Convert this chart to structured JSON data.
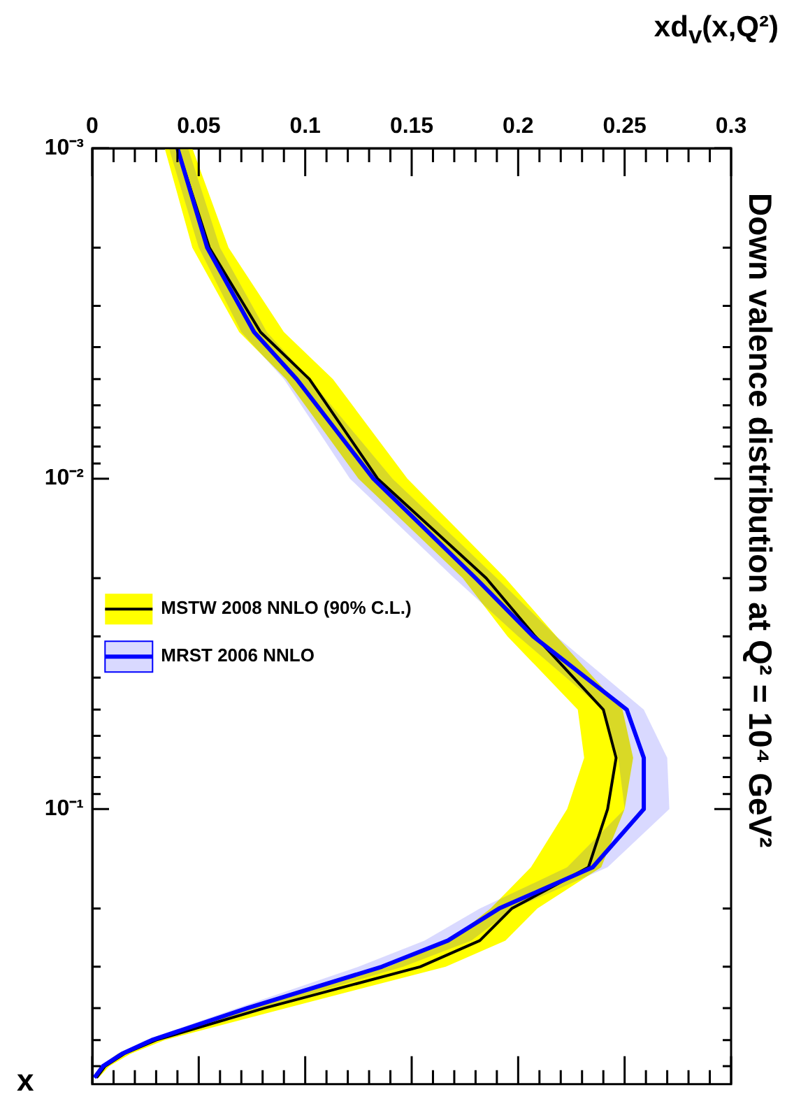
{
  "chart_data": {
    "type": "line",
    "orientation": "horizontal",
    "title": "Down valence distribution at Q² = 10⁴ GeV²",
    "xlabel": "xd$_{v}$(x,Q²)",
    "ylabel": "x",
    "log": "y",
    "ylim": [
      0.68,
      0.001
    ],
    "xlim": [
      0,
      0.3
    ],
    "yticks": [
      {
        "value": 0.001,
        "label": "10⁻³"
      },
      {
        "value": 0.002,
        "label": null
      },
      {
        "value": 0.003,
        "label": null
      },
      {
        "value": 0.004,
        "label": null
      },
      {
        "value": 0.005,
        "label": null
      },
      {
        "value": 0.006,
        "label": null
      },
      {
        "value": 0.007,
        "label": null
      },
      {
        "value": 0.008,
        "label": null
      },
      {
        "value": 0.009,
        "label": null
      },
      {
        "value": 0.01,
        "label": "10⁻²"
      },
      {
        "value": 0.02,
        "label": null
      },
      {
        "value": 0.03,
        "label": null
      },
      {
        "value": 0.04,
        "label": null
      },
      {
        "value": 0.05,
        "label": null
      },
      {
        "value": 0.06,
        "label": null
      },
      {
        "value": 0.07,
        "label": null
      },
      {
        "value": 0.08,
        "label": null
      },
      {
        "value": 0.09,
        "label": null
      },
      {
        "value": 0.1,
        "label": "10⁻¹"
      },
      {
        "value": 0.2,
        "label": null
      },
      {
        "value": 0.3,
        "label": null
      },
      {
        "value": 0.4,
        "label": null
      },
      {
        "value": 0.5,
        "label": null
      },
      {
        "value": 0.6,
        "label": null
      }
    ],
    "xticks": [
      0,
      {
        "value": 0.01,
        "label": null
      },
      {
        "value": 0.02,
        "label": null
      },
      {
        "value": 0.03,
        "label": null
      },
      {
        "value": 0.04,
        "label": null
      },
      0.05,
      {
        "value": 0.06,
        "label": null
      },
      {
        "value": 0.07,
        "label": null
      },
      {
        "value": 0.08,
        "label": null
      },
      {
        "value": 0.09,
        "label": null
      },
      0.1,
      {
        "value": 0.11,
        "label": null
      },
      {
        "value": 0.12,
        "label": null
      },
      {
        "value": 0.13,
        "label": null
      },
      {
        "value": 0.14,
        "label": null
      },
      0.15,
      {
        "value": 0.16,
        "label": null
      },
      {
        "value": 0.17,
        "label": null
      },
      {
        "value": 0.18,
        "label": null
      },
      {
        "value": 0.19,
        "label": null
      },
      0.2,
      {
        "value": 0.21,
        "label": null
      },
      {
        "value": 0.22,
        "label": null
      },
      {
        "value": 0.23,
        "label": null
      },
      {
        "value": 0.24,
        "label": null
      },
      0.25,
      {
        "value": 0.26,
        "label": null
      },
      {
        "value": 0.27,
        "label": null
      },
      {
        "value": 0.28,
        "label": null
      },
      {
        "value": 0.29,
        "label": null
      },
      0.3
    ],
    "grid": false,
    "legend": "left",
    "marker": "none",
    "x": [
      0.001,
      0.002,
      0.0036,
      0.005,
      0.01,
      0.02,
      0.03,
      0.05,
      0.07,
      0.1,
      0.15,
      0.2,
      0.25,
      0.3,
      0.4,
      0.5,
      0.55,
      0.6,
      0.65
    ],
    "series": [
      {
        "name": "MSTW 2008 NNLO (90% C.L.)",
        "color": "#000000",
        "values": [
          0.04,
          0.055,
          0.079,
          0.102,
          0.134,
          0.185,
          0.208,
          0.24,
          0.246,
          0.242,
          0.233,
          0.197,
          0.182,
          0.154,
          0.081,
          0.03,
          0.015,
          0.006,
          0.002
        ],
        "lower": [
          0.034,
          0.047,
          0.069,
          0.091,
          0.125,
          0.174,
          0.195,
          0.228,
          0.231,
          0.223,
          0.206,
          0.187,
          0.168,
          0.139,
          0.074,
          0.026,
          0.012,
          0.004,
          0.001
        ],
        "upper": [
          0.047,
          0.064,
          0.09,
          0.113,
          0.148,
          0.194,
          0.218,
          0.249,
          0.254,
          0.25,
          0.239,
          0.209,
          0.194,
          0.166,
          0.091,
          0.034,
          0.018,
          0.008,
          0.003
        ]
      },
      {
        "name": "MRST 2006 NNLO",
        "color": "#0000ff",
        "values": [
          0.04,
          0.054,
          0.076,
          0.096,
          0.132,
          0.18,
          0.207,
          0.251,
          0.259,
          0.259,
          0.235,
          0.191,
          0.167,
          0.136,
          0.073,
          0.028,
          0.014,
          0.005,
          0.001
        ],
        "lower": [
          0.036,
          0.05,
          0.07,
          0.09,
          0.121,
          0.17,
          0.2,
          0.24,
          0.247,
          0.25,
          0.223,
          0.182,
          0.156,
          0.125,
          0.068,
          0.025,
          0.012,
          0.004,
          0.0
        ],
        "upper": [
          0.045,
          0.06,
          0.082,
          0.102,
          0.141,
          0.19,
          0.218,
          0.259,
          0.27,
          0.271,
          0.242,
          0.198,
          0.178,
          0.146,
          0.08,
          0.031,
          0.016,
          0.007,
          0.002
        ]
      }
    ]
  }
}
